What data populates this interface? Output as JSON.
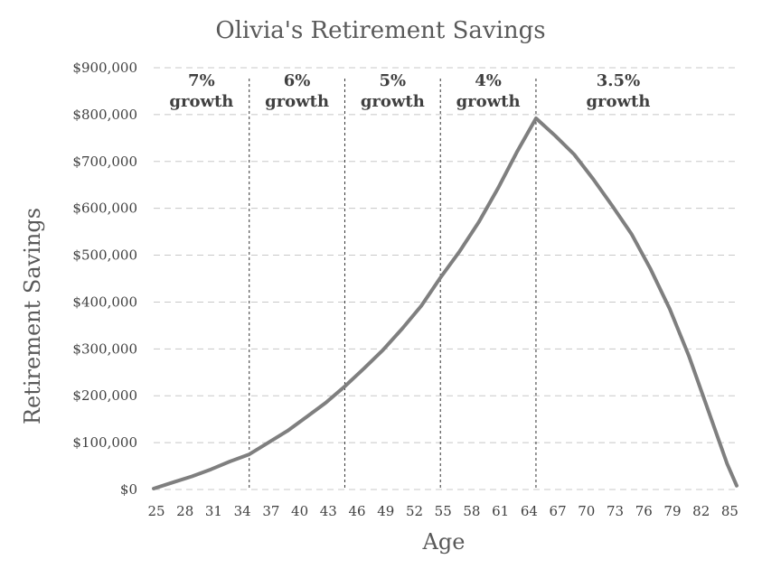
{
  "chart_data": {
    "type": "line",
    "title": "Olivia's Retirement Savings",
    "xlabel": "Age",
    "ylabel": "Retirement Savings",
    "ylim": [
      0,
      900000
    ],
    "xlim": [
      25,
      86
    ],
    "grid": true,
    "legend": "none",
    "y_ticks": [
      "$0",
      "$100,000",
      "$200,000",
      "$300,000",
      "$400,000",
      "$500,000",
      "$600,000",
      "$700,000",
      "$800,000",
      "$900,000"
    ],
    "y_tick_values": [
      0,
      100000,
      200000,
      300000,
      400000,
      500000,
      600000,
      700000,
      800000,
      900000
    ],
    "x_tick_values": [
      25,
      28,
      31,
      34,
      37,
      40,
      43,
      46,
      49,
      52,
      55,
      58,
      61,
      64,
      67,
      70,
      73,
      76,
      79,
      82,
      85
    ],
    "x_ticks": [
      "25",
      "28",
      "31",
      "34",
      "37",
      "40",
      "43",
      "46",
      "49",
      "52",
      "55",
      "58",
      "61",
      "64",
      "67",
      "70",
      "73",
      "76",
      "79",
      "82",
      "85"
    ],
    "regions": [
      {
        "pct": "7%",
        "label": "growth",
        "from": 25,
        "to": 35
      },
      {
        "pct": "6%",
        "label": "growth",
        "from": 35,
        "to": 45
      },
      {
        "pct": "5%",
        "label": "growth",
        "from": 45,
        "to": 55
      },
      {
        "pct": "4%",
        "label": "growth",
        "from": 55,
        "to": 65
      },
      {
        "pct": "3.5%",
        "label": "growth",
        "from": 65,
        "to": 86
      }
    ],
    "series": [
      {
        "color": "#7f7f7f",
        "x": [
          25,
          27,
          29,
          31,
          33,
          35,
          37,
          39,
          41,
          43,
          45,
          47,
          49,
          51,
          53,
          55,
          57,
          59,
          61,
          63,
          65,
          67,
          69,
          71,
          73,
          75,
          77,
          79,
          81,
          83,
          85,
          86
        ],
        "values": [
          2000,
          15000,
          28000,
          43000,
          60000,
          75000,
          100000,
          125000,
          155000,
          185000,
          220000,
          258000,
          298000,
          343000,
          392000,
          452000,
          508000,
          570000,
          642000,
          720000,
          792000,
          755000,
          715000,
          662000,
          605000,
          545000,
          470000,
          385000,
          285000,
          170000,
          55000,
          8000
        ]
      }
    ]
  }
}
